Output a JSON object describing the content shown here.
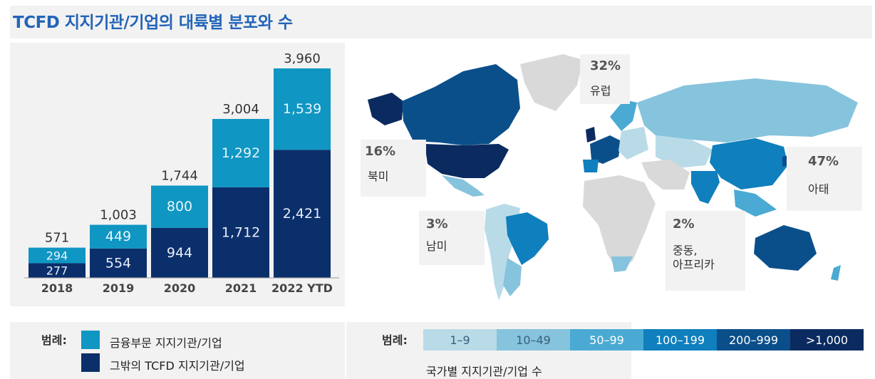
{
  "title": "TCFD 지지기관/기업의 대륙별 분포와 수",
  "chart_data": {
    "type": "bar",
    "stacked": true,
    "categories": [
      "2018",
      "2019",
      "2020",
      "2021",
      "2022 YTD"
    ],
    "totals": [
      "571",
      "1,003",
      "1,744",
      "3,004",
      "3,960"
    ],
    "series": [
      {
        "name": "그밖의 TCFD 지지기관/기업",
        "values": [
          277,
          554,
          944,
          1712,
          2421
        ],
        "labels": [
          "277",
          "554",
          "944",
          "1,712",
          "2,421"
        ],
        "color": "#0b2f6b"
      },
      {
        "name": "금융부문 지지기관/기업",
        "values": [
          294,
          449,
          800,
          1292,
          1539
        ],
        "labels": [
          "294",
          "449",
          "800",
          "1,292",
          "1,539"
        ],
        "color": "#0f96c2"
      }
    ],
    "ylim": [
      0,
      3960
    ]
  },
  "legend_left": {
    "title": "범례:",
    "items": [
      {
        "label": "금융부문 지지기관/기업",
        "color": "#0f96c2"
      },
      {
        "label": "그밖의 TCFD 지지기관/기업",
        "color": "#0b2f6b"
      }
    ]
  },
  "map": {
    "regions": [
      {
        "pct": "16%",
        "name": "북미"
      },
      {
        "pct": "32%",
        "name": "유럽"
      },
      {
        "pct": "47%",
        "name": "아태"
      },
      {
        "pct": "3%",
        "name": "남미"
      },
      {
        "pct": "2%",
        "name": "중동,\n아프리카"
      }
    ]
  },
  "legend_right": {
    "title": "범례:",
    "scale": [
      {
        "label": "1–9",
        "color": "#b9dbe8"
      },
      {
        "label": "10–49",
        "color": "#86c3dc"
      },
      {
        "label": "50–99",
        "color": "#4aaad3"
      },
      {
        "label": "100–199",
        "color": "#0f7fbd"
      },
      {
        "label": "200–999",
        "color": "#0b4f8a"
      },
      {
        "label": ">1,000",
        "color": "#0b2a60"
      }
    ],
    "caption": "국가별 지지기관/기업 수"
  }
}
